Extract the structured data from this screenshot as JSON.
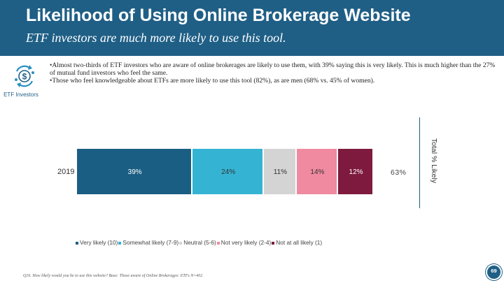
{
  "header": {
    "title": "Likelihood of Using Online Brokerage Website",
    "subtitle": "ETF investors are much more likely to use this tool."
  },
  "bullets": [
    "•Almost two-thirds of ETF investors who are aware of online brokerages are likely to use them, with 39% saying this is very likely. This is much higher than the 27% of mutual fund investors who feel the same.",
    "•Those who feel knowledgeable about ETFs are more likely to use this tool (82%), as are men (68% vs. 45% of women)."
  ],
  "investor": {
    "label": "ETF Investors",
    "icon": "investor-money-cycle-icon"
  },
  "footnote": "Q16. How likely would you be to use this website? Base: Those aware of Online Brokerages: ETFs N=402",
  "page_number": "69",
  "colors": {
    "header": "#1f5f86",
    "very_likely": "#1b5e83",
    "somewhat_likely": "#35b3d3",
    "neutral": "#d4d4d4",
    "not_very_likely": "#f08aa0",
    "not_at_all_likely": "#7d1a3d"
  },
  "chart_data": {
    "type": "bar",
    "orientation": "horizontal",
    "stacked": true,
    "normalized": true,
    "categories": [
      "2019"
    ],
    "series": [
      {
        "name": "Very likely (10)",
        "values": [
          39
        ],
        "label": "39%",
        "color": "#1b5e83"
      },
      {
        "name": "Somewhat likely (7-9)",
        "values": [
          24
        ],
        "label": "24%",
        "color": "#35b3d3"
      },
      {
        "name": "Neutral (5-6)",
        "values": [
          11
        ],
        "label": "11%",
        "color": "#d4d4d4"
      },
      {
        "name": "Not very likely (2-4)",
        "values": [
          14
        ],
        "label": "14%",
        "color": "#f08aa0"
      },
      {
        "name": "Not at all likely (1)",
        "values": [
          12
        ],
        "label": "12%",
        "color": "#7d1a3d"
      }
    ],
    "total_label": "Total % Likely",
    "total_value": "63%",
    "legend_position": "bottom",
    "grid": false
  }
}
